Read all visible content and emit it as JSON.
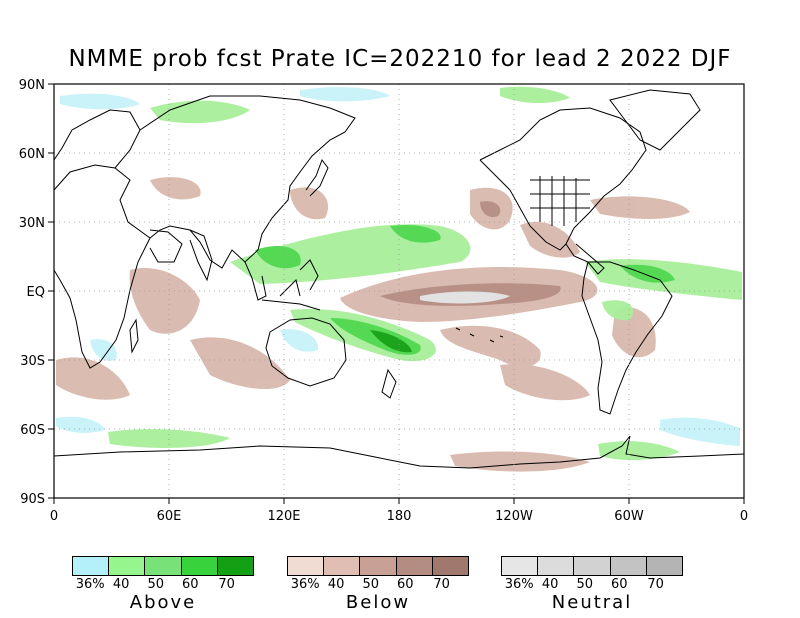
{
  "title": "NMME prob fcst Prate IC=202210 for lead 2 2022 DJF",
  "axes": {
    "y_ticks": [
      "90N",
      "60N",
      "30N",
      "EQ",
      "30S",
      "60S",
      "90S"
    ],
    "x_ticks": [
      "0",
      "60E",
      "120E",
      "180",
      "120W",
      "60W",
      "0"
    ]
  },
  "legends": [
    {
      "caption": "Above",
      "tick_labels": [
        "36%",
        "40",
        "50",
        "60",
        "70"
      ],
      "colors": [
        "#b4f0fa",
        "#96f58c",
        "#78e178",
        "#37d23c",
        "#14a014"
      ]
    },
    {
      "caption": "Below",
      "tick_labels": [
        "36%",
        "40",
        "50",
        "60",
        "70"
      ],
      "colors": [
        "#f0dcd2",
        "#e1beb4",
        "#c8a096",
        "#b48c82",
        "#a0786e"
      ]
    },
    {
      "caption": "Neutral",
      "tick_labels": [
        "36%",
        "40",
        "50",
        "60",
        "70"
      ],
      "colors": [
        "#e6e6e6",
        "#dcdcdc",
        "#d2d2d2",
        "#c3c3c3",
        "#b4b4b4"
      ]
    }
  ]
}
